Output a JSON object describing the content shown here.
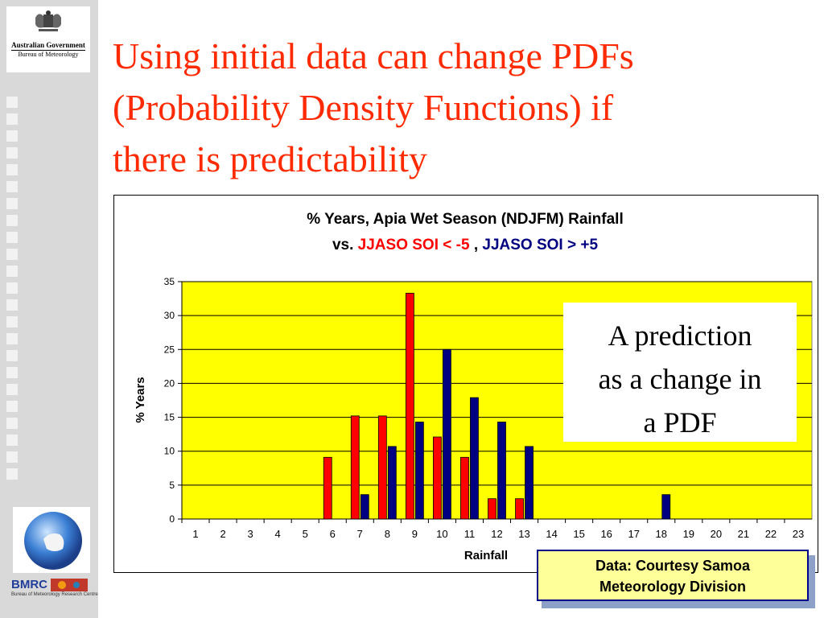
{
  "slide": {
    "title_lines": [
      "Using initial data can change PDFs",
      "(Probability Density Functions) if",
      "there is predictability"
    ],
    "callout_lines": [
      "A prediction",
      "as a change in",
      "a PDF"
    ],
    "source_lines": [
      "Data: Courtesy Samoa",
      "Meteorology Division"
    ]
  },
  "logos": {
    "gov_line1": "Australian Government",
    "gov_line2": "Bureau of Meteorology",
    "bmrc": "BMRC",
    "bmrc_sub": "Bureau of Meteorology Research Centre"
  },
  "colors": {
    "title": "#ff2a00",
    "plot_bg": "#ffff00",
    "negative_series": "#ff0000",
    "positive_series": "#000080"
  },
  "chart_data": {
    "type": "bar",
    "title_line1": "% Years, Apia Wet Season (NDJFM) Rainfall",
    "title_vs": "vs.",
    "title_neg": "JJASO SOI < -5",
    "title_comma": ",",
    "title_pos": "JJASO SOI > +5",
    "xlabel": "Rainfall",
    "ylabel": "% Years",
    "ylim": [
      0,
      35
    ],
    "yticks": [
      0,
      5,
      10,
      15,
      20,
      25,
      30,
      35
    ],
    "grid": true,
    "categories": [
      "1",
      "2",
      "3",
      "4",
      "5",
      "6",
      "7",
      "8",
      "9",
      "10",
      "11",
      "12",
      "13",
      "14",
      "15",
      "16",
      "17",
      "18",
      "19",
      "20",
      "21",
      "22",
      "23"
    ],
    "series": [
      {
        "name": "JJASO SOI < -5",
        "color": "#ff0000",
        "values": [
          0,
          0,
          0,
          0,
          0,
          9.1,
          15.2,
          15.2,
          33.3,
          12.1,
          9.1,
          3.0,
          3.0,
          0,
          0,
          0,
          0,
          0,
          0,
          0,
          0,
          0,
          0
        ]
      },
      {
        "name": "JJASO SOI > +5",
        "color": "#000080",
        "values": [
          0,
          0,
          0,
          0,
          0,
          0,
          3.6,
          10.7,
          14.3,
          25.0,
          17.9,
          14.3,
          10.7,
          0,
          0,
          0,
          0,
          3.6,
          0,
          0,
          0,
          0,
          0
        ]
      }
    ]
  }
}
